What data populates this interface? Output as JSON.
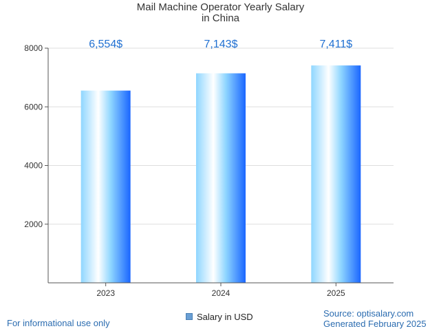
{
  "chart_data": {
    "type": "bar",
    "title_line1": "Mail Machine Operator Yearly Salary",
    "title_line2": "in China",
    "categories": [
      "2023",
      "2024",
      "2025"
    ],
    "values": [
      6554,
      7143,
      7411
    ],
    "data_labels": [
      "6,554$",
      "7,143$",
      "7,411$"
    ],
    "y_ticks": [
      "2000",
      "4000",
      "6000",
      "8000"
    ],
    "y_tick_values": [
      2000,
      4000,
      6000,
      8000
    ],
    "ylim": [
      0,
      8000
    ],
    "legend": "Salary in USD",
    "grid": true
  },
  "footer": {
    "left": "For informational use only",
    "source": "Source: optisalary.com",
    "generated": "Generated February 2025"
  },
  "colors": {
    "bar_light": "#ffffff",
    "bar_mid": "#8fd6ff",
    "bar_dark": "#1a66ff",
    "label": "#1f6fd1",
    "grid": "#dddddd",
    "axis": "#555555"
  }
}
